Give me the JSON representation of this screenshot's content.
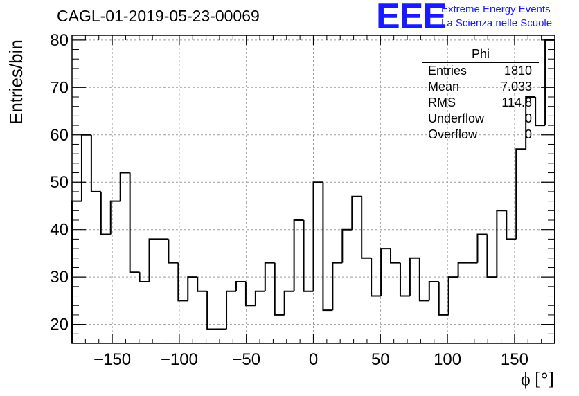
{
  "title": "CAGL-01-2019-05-23-00069",
  "logo": {
    "mark": "EEE",
    "line1": "Extreme Energy Events",
    "line2": "La Scienza nelle Scuole",
    "color": "#1a1aff"
  },
  "stats": {
    "title": "Phi",
    "rows": [
      {
        "label": "Entries",
        "value": "1810"
      },
      {
        "label": "Mean",
        "value": "7.033"
      },
      {
        "label": "RMS",
        "value": "114.8"
      },
      {
        "label": "Underflow",
        "value": "0"
      },
      {
        "label": "Overflow",
        "value": "0"
      }
    ]
  },
  "chart_data": {
    "type": "bar",
    "title": "CAGL-01-2019-05-23-00069",
    "xlabel": "ϕ [°]",
    "ylabel": "Entries/bin",
    "xlim": [
      -180,
      180
    ],
    "ylim": [
      16,
      81
    ],
    "bin_width": 7.2,
    "xticks": [
      -150,
      -100,
      -50,
      0,
      50,
      100,
      150
    ],
    "yticks": [
      20,
      30,
      40,
      50,
      60,
      70,
      80
    ],
    "grid": true,
    "values": [
      46,
      60,
      48,
      39,
      46,
      52,
      31,
      29,
      38,
      38,
      33,
      25,
      30,
      27,
      19,
      19,
      27,
      29,
      24,
      27,
      33,
      22,
      27,
      42,
      27,
      50,
      23,
      33,
      40,
      47,
      34,
      26,
      36,
      33,
      26,
      34,
      25,
      29,
      22,
      30,
      33,
      33,
      39,
      30,
      44,
      38,
      57,
      68,
      62,
      80
    ]
  }
}
